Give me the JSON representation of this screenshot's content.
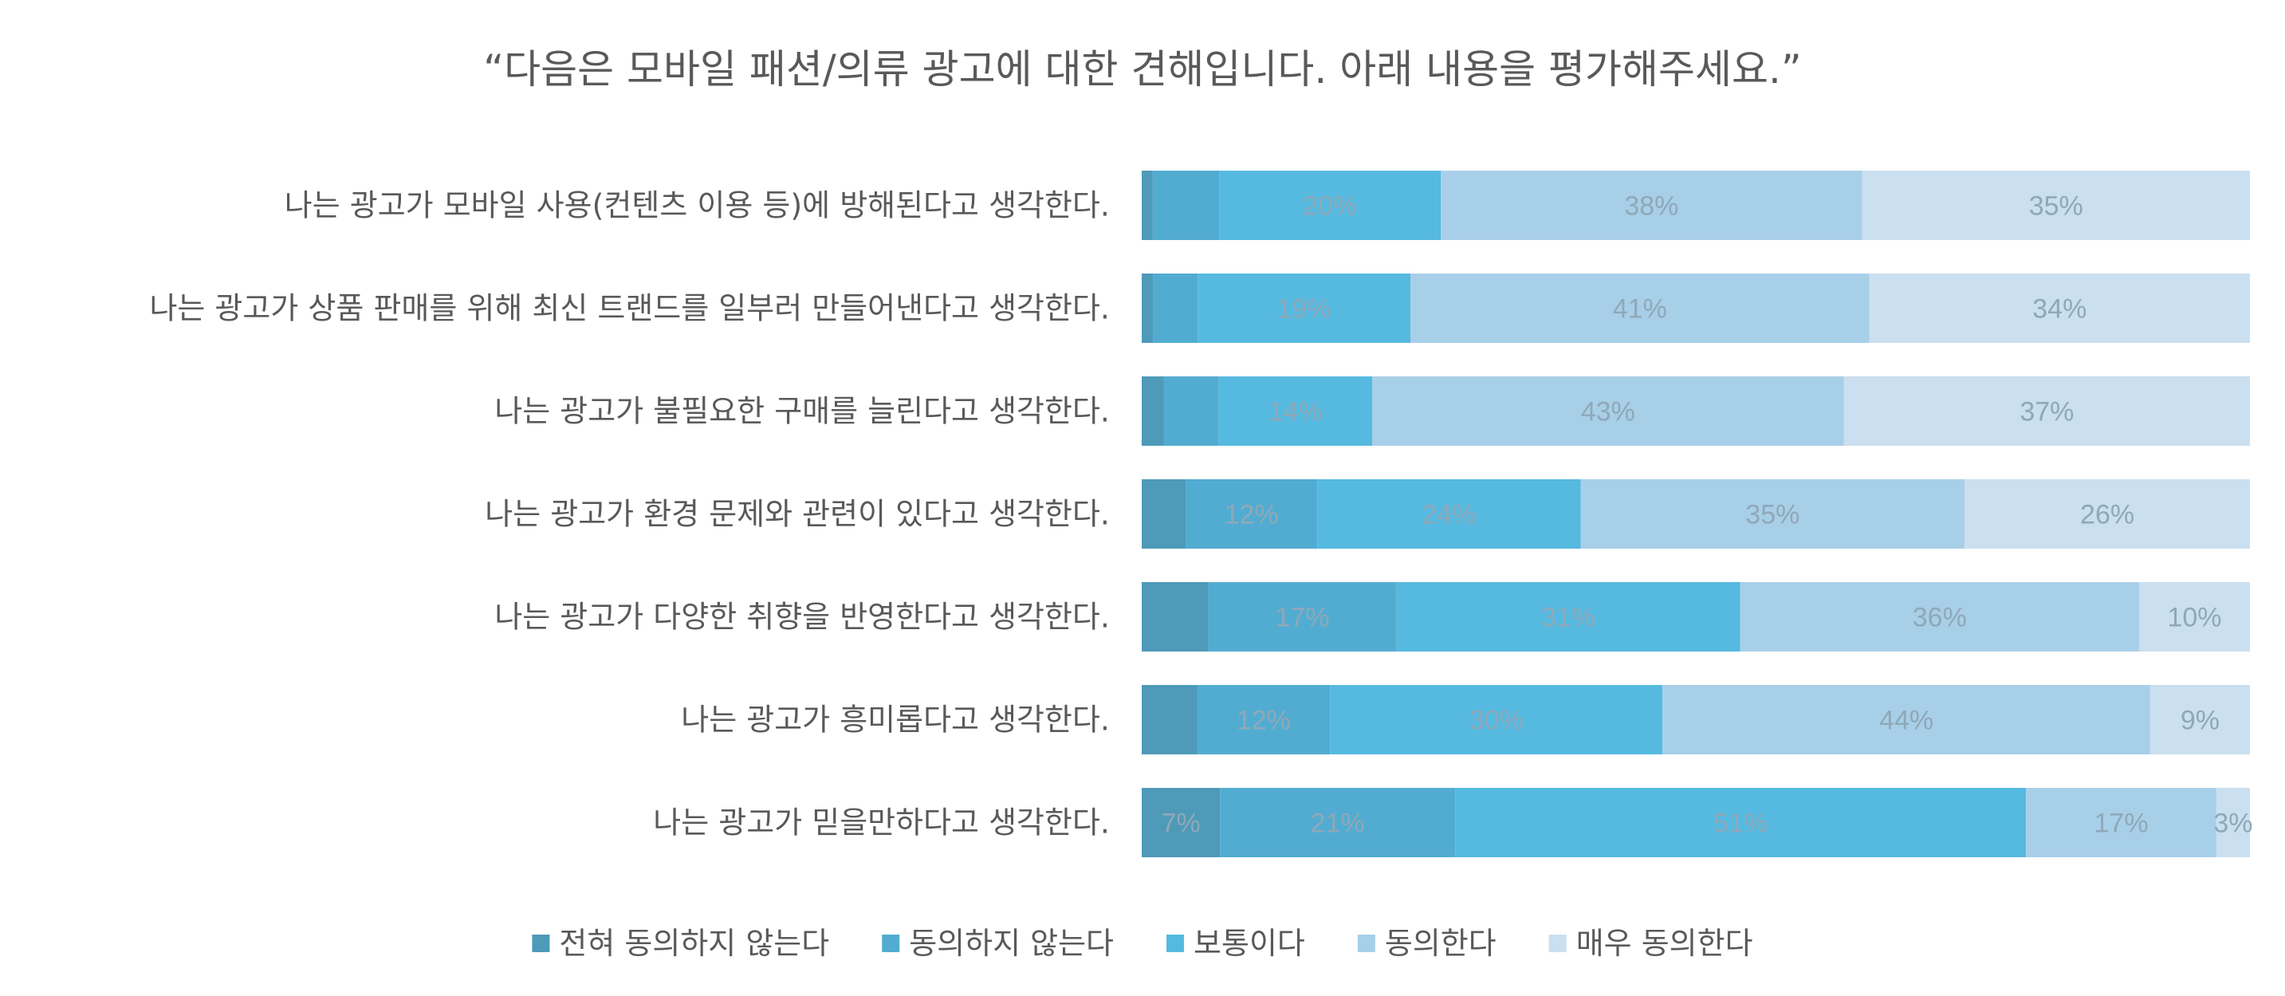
{
  "chart_data": {
    "type": "bar",
    "orientation": "horizontal",
    "stacked": "100%",
    "title": "“다음은 모바일 패션/의류 광고에 대한 견해입니다. 아래 내용을 평가해주세요.”",
    "categories": [
      "나는 광고가 모바일 사용(컨텐츠 이용 등)에 방해된다고 생각한다.",
      "나는 광고가 상품 판매를 위해 최신 트랜드를 일부러 만들어낸다고 생각한다.",
      "나는 광고가 불필요한 구매를 늘린다고 생각한다.",
      "나는 광고가 환경 문제와 관련이 있다고 생각한다.",
      "나는 광고가 다양한 취향을 반영한다고 생각한다.",
      "나는 광고가 흥미롭다고 생각한다.",
      "나는 광고가 믿을만하다고 생각한다."
    ],
    "series": [
      {
        "name": "전혀 동의하지 않는다",
        "color": "#4e9ab8",
        "values": [
          1,
          1,
          2,
          4,
          6,
          5,
          7
        ],
        "labels": [
          "",
          "",
          "",
          "",
          "",
          "",
          "7%"
        ]
      },
      {
        "name": "동의하지 않는다",
        "color": "#52acd1",
        "values": [
          6,
          4,
          5,
          12,
          17,
          12,
          21
        ],
        "labels": [
          "",
          "",
          "",
          "12%",
          "17%",
          "12%",
          "21%"
        ]
      },
      {
        "name": "보통이다",
        "color": "#56b9e0",
        "values": [
          20,
          19,
          14,
          24,
          31,
          30,
          51
        ],
        "labels": [
          "20%",
          "19%",
          "14%",
          "24%",
          "31%",
          "30%",
          "51%"
        ]
      },
      {
        "name": "동의한다",
        "color": "#a8cfe8",
        "values": [
          38,
          41,
          43,
          35,
          36,
          44,
          17
        ],
        "labels": [
          "38%",
          "41%",
          "43%",
          "35%",
          "36%",
          "44%",
          "17%"
        ]
      },
      {
        "name": "매우 동의한다",
        "color": "#cadfef",
        "values": [
          35,
          34,
          37,
          26,
          10,
          9,
          3
        ],
        "labels": [
          "35%",
          "34%",
          "37%",
          "26%",
          "10%",
          "9%",
          "3%"
        ]
      }
    ],
    "xlim": [
      0,
      100
    ],
    "legend": "bottom",
    "grid": false
  }
}
